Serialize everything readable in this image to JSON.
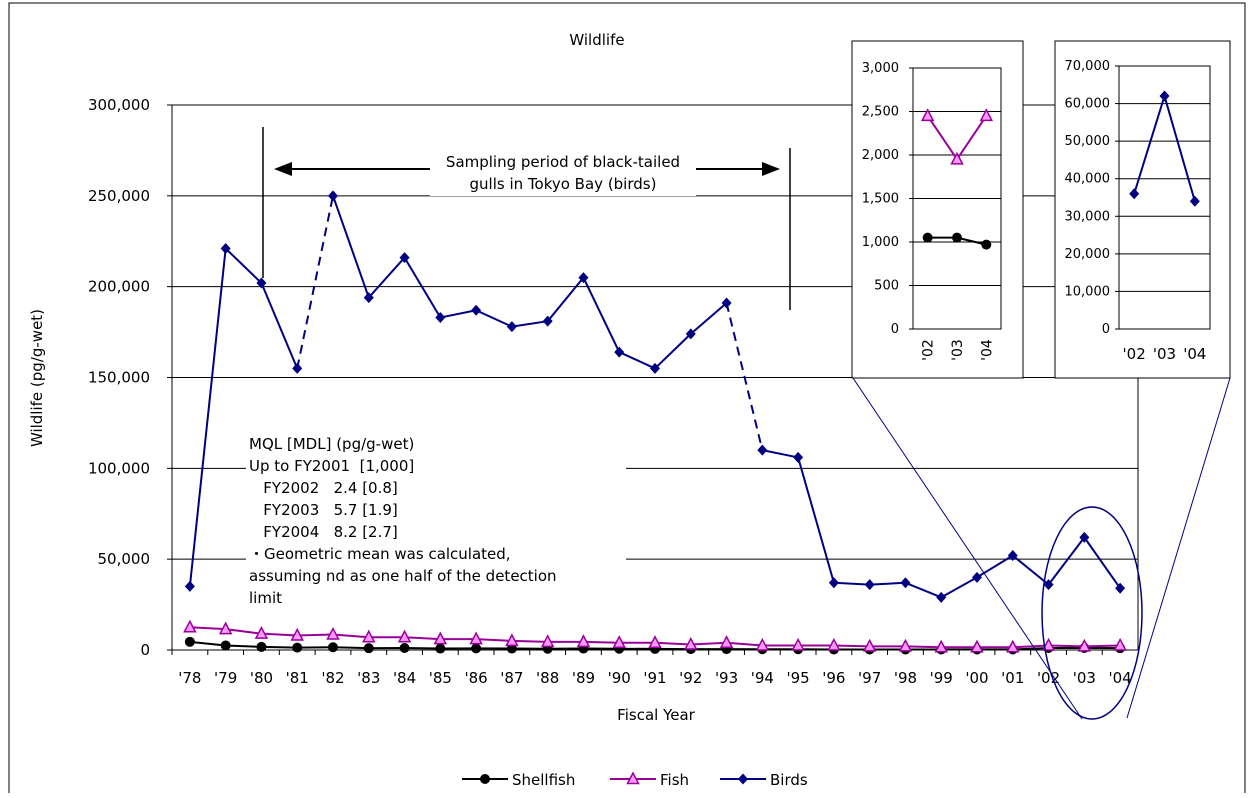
{
  "chart_data": [
    {
      "type": "line",
      "title": "Wildlife",
      "xlabel": "Fiscal Year",
      "ylabel": "Wildlife (pg/g-wet)",
      "ylim": [
        0,
        300000
      ],
      "yticks": [
        "0",
        "50,000",
        "100,000",
        "150,000",
        "200,000",
        "250,000",
        "300,000"
      ],
      "grid": "horizontal",
      "legend_position": "bottom",
      "categories": [
        "'78",
        "'79",
        "'80",
        "'81",
        "'82",
        "'83",
        "'84",
        "'85",
        "'86",
        "'87",
        "'88",
        "'89",
        "'90",
        "'91",
        "'92",
        "'93",
        "'94",
        "'95",
        "'96",
        "'97",
        "'98",
        "'99",
        "'00",
        "'01",
        "'02",
        "'03",
        "'04"
      ],
      "series": [
        {
          "name": "Shellfish",
          "color": "#000000",
          "marker": "circle",
          "values": [
            4500,
            2500,
            1700,
            1300,
            1500,
            1000,
            1100,
            800,
            900,
            800,
            700,
            800,
            700,
            600,
            500,
            500,
            400,
            400,
            300,
            300,
            300,
            300,
            300,
            300,
            1100,
            1100,
            1000
          ]
        },
        {
          "name": "Fish",
          "color": "#990099",
          "marker": "triangle",
          "values": [
            12500,
            11500,
            9000,
            8000,
            8500,
            7000,
            7000,
            6000,
            6000,
            5000,
            4500,
            4500,
            4000,
            4000,
            3000,
            4000,
            2500,
            2500,
            2500,
            2000,
            2000,
            1500,
            1500,
            1500,
            2500,
            2000,
            2500
          ]
        },
        {
          "name": "Birds",
          "color": "#000080",
          "marker": "diamond",
          "values": [
            35000,
            221000,
            202000,
            155000,
            250000,
            194000,
            216000,
            183000,
            187000,
            178000,
            181000,
            205000,
            164000,
            155000,
            174000,
            191000,
            110000,
            106000,
            37000,
            36000,
            37000,
            29000,
            40000,
            52000,
            36000,
            62000,
            34000
          ],
          "dashed_segments": [
            [
              3,
              4
            ],
            [
              15,
              16
            ]
          ]
        }
      ],
      "annotations": {
        "sampling_label_line1": "Sampling period of black-tailed",
        "sampling_label_line2": "gulls in Tokyo Bay (birds)",
        "mql_lines": [
          "MQL [MDL] (pg/g-wet)",
          "Up to FY2001  [1,000]",
          "   FY2002   2.4 [0.8]",
          "   FY2003   5.7 [1.9]",
          "   FY2004   8.2 [2.7]",
          "・Geometric mean was calculated,",
          "assuming nd as one half of the detection",
          "limit"
        ]
      }
    },
    {
      "type": "line",
      "title": "",
      "categories": [
        "'02",
        "'03",
        "'04"
      ],
      "ylim": [
        0,
        3000
      ],
      "yticks": [
        "0",
        "500",
        "1,000",
        "1,500",
        "2,000",
        "2,500",
        "3,000"
      ],
      "series": [
        {
          "name": "Shellfish",
          "values": [
            1050,
            1050,
            970
          ]
        },
        {
          "name": "Fish",
          "values": [
            2450,
            1950,
            2450
          ]
        }
      ]
    },
    {
      "type": "line",
      "title": "",
      "categories": [
        "'02",
        "'03",
        "'04"
      ],
      "ylim": [
        0,
        70000
      ],
      "yticks": [
        "0",
        "10,000",
        "20,000",
        "30,000",
        "40,000",
        "50,000",
        "60,000",
        "70,000"
      ],
      "series": [
        {
          "name": "Birds",
          "values": [
            36000,
            62000,
            34000
          ]
        }
      ]
    }
  ]
}
